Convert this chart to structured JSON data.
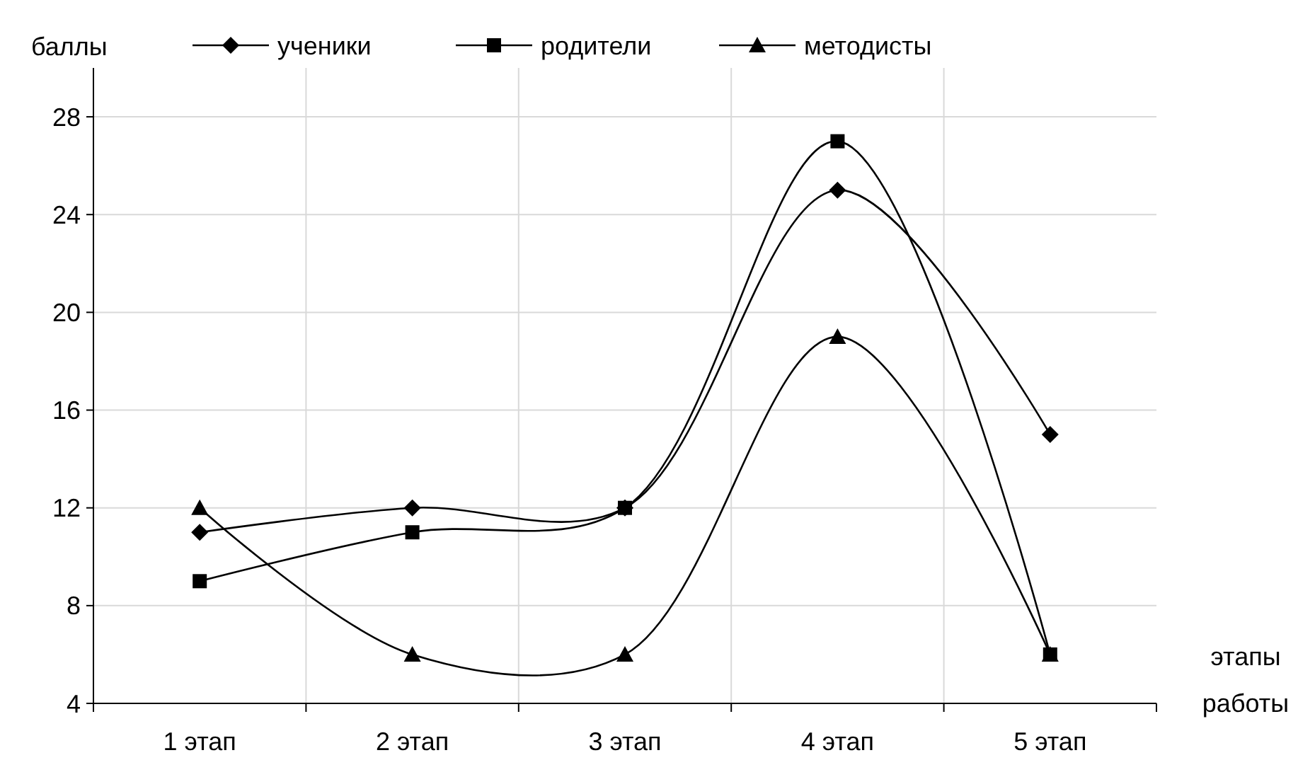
{
  "chart_data": {
    "type": "line",
    "ylabel": "баллы",
    "xlabel": "этапы работы",
    "categories": [
      "1 этап",
      "2 этап",
      "3 этап",
      "4 этап",
      "5 этап"
    ],
    "series": [
      {
        "name": "ученики",
        "color": "#000000",
        "marker": "diamond",
        "values": [
          11,
          12,
          12,
          25,
          15
        ]
      },
      {
        "name": "родители",
        "color": "#000000",
        "marker": "square",
        "values": [
          9,
          11,
          12,
          27,
          6
        ]
      },
      {
        "name": "методисты",
        "color": "#000000",
        "marker": "triangle",
        "values": [
          12,
          6,
          6,
          19,
          6
        ]
      }
    ],
    "ylim": [
      4,
      30
    ],
    "yticks": [
      4,
      8,
      12,
      16,
      20,
      24,
      28
    ],
    "grid": true,
    "legend": "top",
    "line_style": "solid"
  }
}
